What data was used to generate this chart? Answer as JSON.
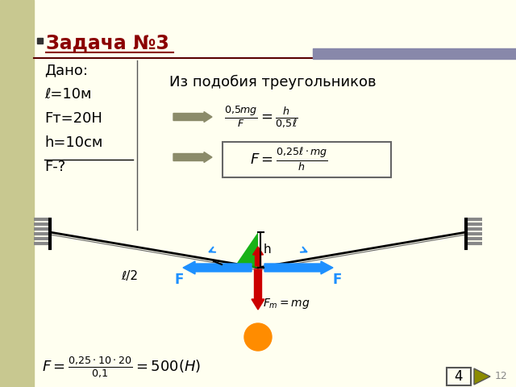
{
  "bg_color": "#FFFFF0",
  "sidebar_color": "#C8C890",
  "title_text": "Задача №3",
  "title_color": "#8B0000",
  "dado_lines": [
    "Дано:",
    "ℓ=10м",
    "Fт=20Н",
    "h=10см",
    "F-?"
  ],
  "iz_text": "Из подобия треугольников",
  "arrow_color": "#8B8B6A",
  "rope_color": "#000000",
  "blue_arrow_color": "#1E90FF",
  "red_arrow_color": "#CC0000",
  "green_triangle_color": "#00AA00",
  "orange_ball_color": "#FF8C00",
  "label_F": "F",
  "label_h": "h",
  "label_l2": "ℓ/2",
  "slide_num": "4",
  "slide_total": "12",
  "dark_red_line": "#5a0000",
  "gray_bar_color": "#8888AA"
}
